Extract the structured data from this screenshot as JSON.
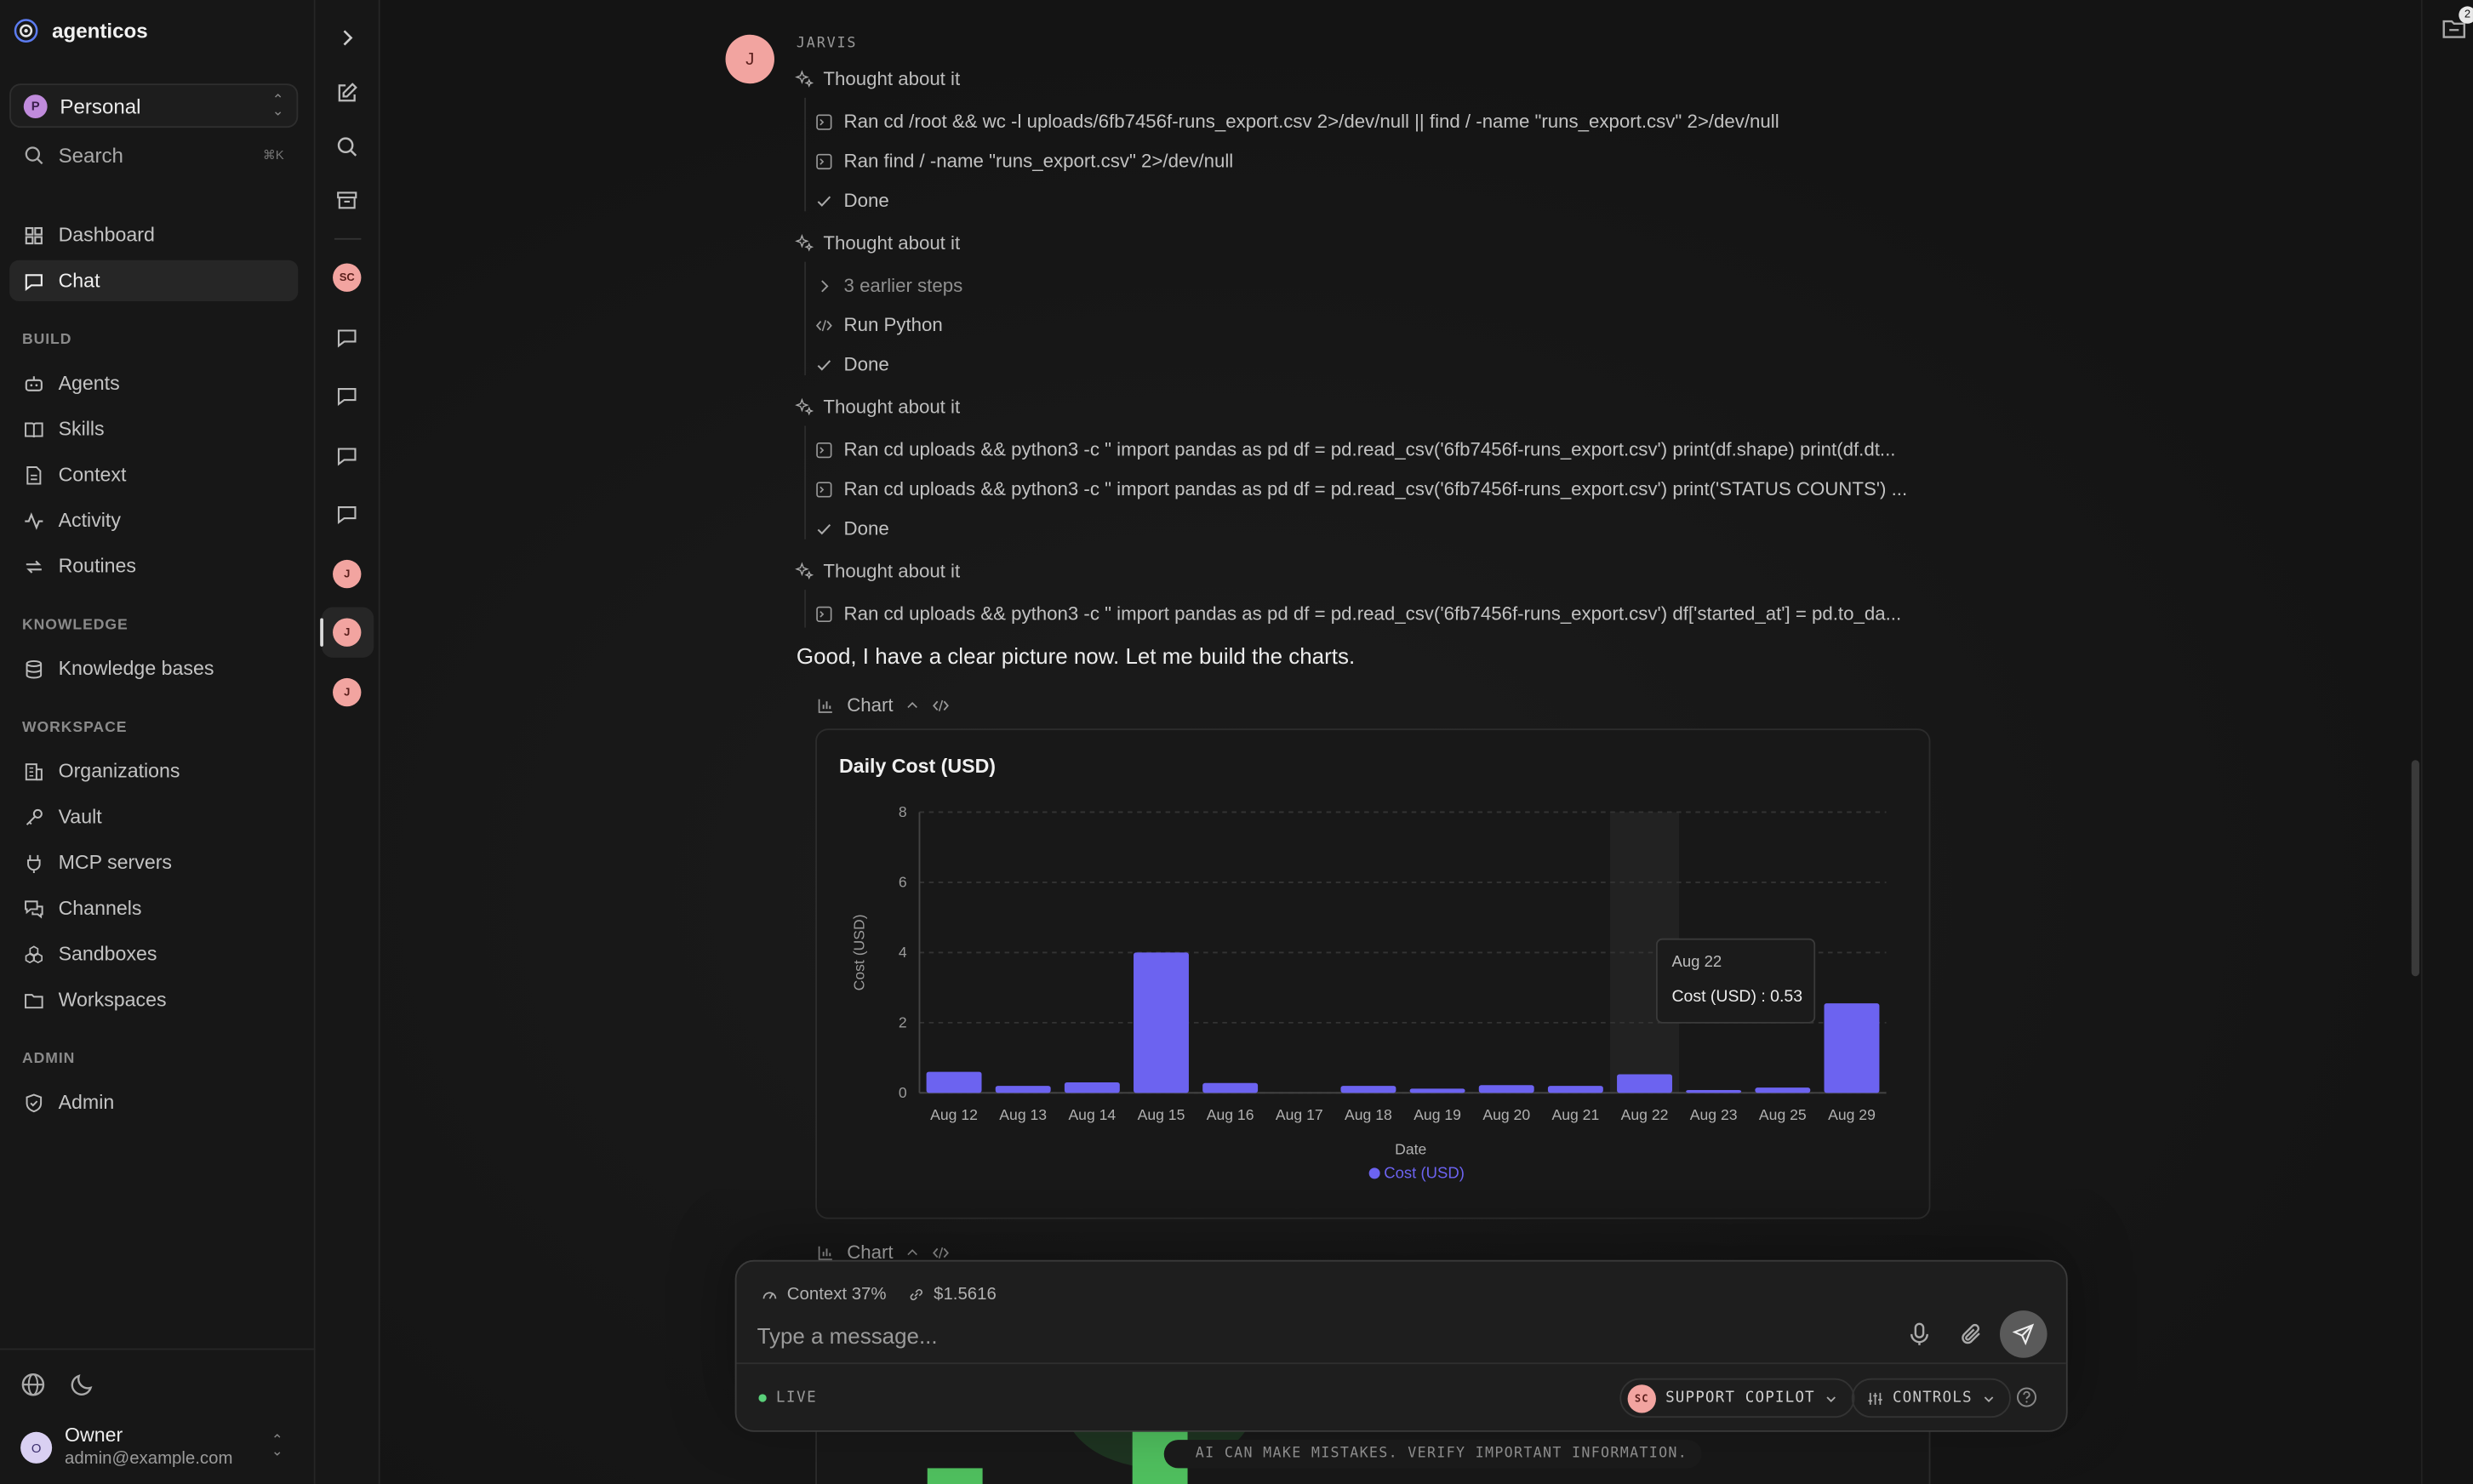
{
  "app": {
    "name": "agenticos"
  },
  "workspace": {
    "badge": "P",
    "name": "Personal"
  },
  "search": {
    "label": "Search",
    "shortcut": "⌘K"
  },
  "nav": {
    "dashboard": "Dashboard",
    "chat": "Chat",
    "build_label": "BUILD",
    "agents": "Agents",
    "skills": "Skills",
    "context": "Context",
    "activity": "Activity",
    "routines": "Routines",
    "knowledge_label": "KNOWLEDGE",
    "knowledge_bases": "Knowledge bases",
    "workspace_label": "WORKSPACE",
    "organizations": "Organizations",
    "vault": "Vault",
    "mcp_servers": "MCP servers",
    "channels": "Channels",
    "sandboxes": "Sandboxes",
    "workspaces": "Workspaces",
    "admin_label": "ADMIN",
    "admin": "Admin"
  },
  "user": {
    "initial": "O",
    "name": "Owner",
    "email": "admin@example.com"
  },
  "rail": {
    "sc": "SC",
    "j": "J"
  },
  "notifications": {
    "count": "2"
  },
  "message": {
    "avatar": "J",
    "agent": "JARVIS",
    "thought_label": "Thought about it",
    "group1": {
      "step1": "Ran cd /root && wc -l uploads/6fb7456f-runs_export.csv 2>/dev/null || find / -name \"runs_export.csv\" 2>/dev/null",
      "step2": "Ran find / -name \"runs_export.csv\" 2>/dev/null",
      "done": "Done"
    },
    "group2": {
      "earlier": "3 earlier steps",
      "step1": "Run Python",
      "done": "Done"
    },
    "group3": {
      "step1": "Ran cd uploads && python3 -c \" import pandas as pd df = pd.read_csv('6fb7456f-runs_export.csv') print(df.shape) print(df.dt...",
      "step2": "Ran cd uploads && python3 -c \" import pandas as pd df = pd.read_csv('6fb7456f-runs_export.csv') print('STATUS COUNTS') ...",
      "done": "Done"
    },
    "group4": {
      "step1": "Ran cd uploads && python3 -c \" import pandas as pd df = pd.read_csv('6fb7456f-runs_export.csv') df['started_at'] = pd.to_da..."
    },
    "reply": "Good, I have a clear picture now. Let me build the charts.",
    "chart_label": "Chart"
  },
  "chart_data": {
    "type": "bar",
    "title": "Daily Cost (USD)",
    "xlabel": "Date",
    "ylabel": "Cost (USD)",
    "categories": [
      "Aug 12",
      "Aug 13",
      "Aug 14",
      "Aug 15",
      "Aug 16",
      "Aug 17",
      "Aug 18",
      "Aug 19",
      "Aug 20",
      "Aug 21",
      "Aug 22",
      "Aug 23",
      "Aug 25",
      "Aug 29"
    ],
    "series": [
      {
        "name": "Cost (USD)",
        "color": "#6c63f0",
        "values": [
          0.6,
          0.2,
          0.3,
          4.0,
          0.28,
          0.0,
          0.2,
          0.12,
          0.22,
          0.2,
          0.53,
          0.08,
          0.15,
          2.55
        ]
      }
    ],
    "ylim": [
      0,
      8
    ],
    "yticks": [
      0,
      2,
      4,
      6,
      8
    ],
    "grid": true,
    "legend": "bottom",
    "tooltip": {
      "category": "Aug 22",
      "text": "Cost (USD) : 0.53"
    }
  },
  "composer": {
    "context": "Context 37%",
    "cost": "$1.5616",
    "placeholder": "Type a message...",
    "live": "LIVE",
    "agent_initials": "SC",
    "agent": "SUPPORT COPILOT",
    "controls": "CONTROLS",
    "disclaimer": "AI CAN MAKE MISTAKES. VERIFY IMPORTANT INFORMATION."
  }
}
